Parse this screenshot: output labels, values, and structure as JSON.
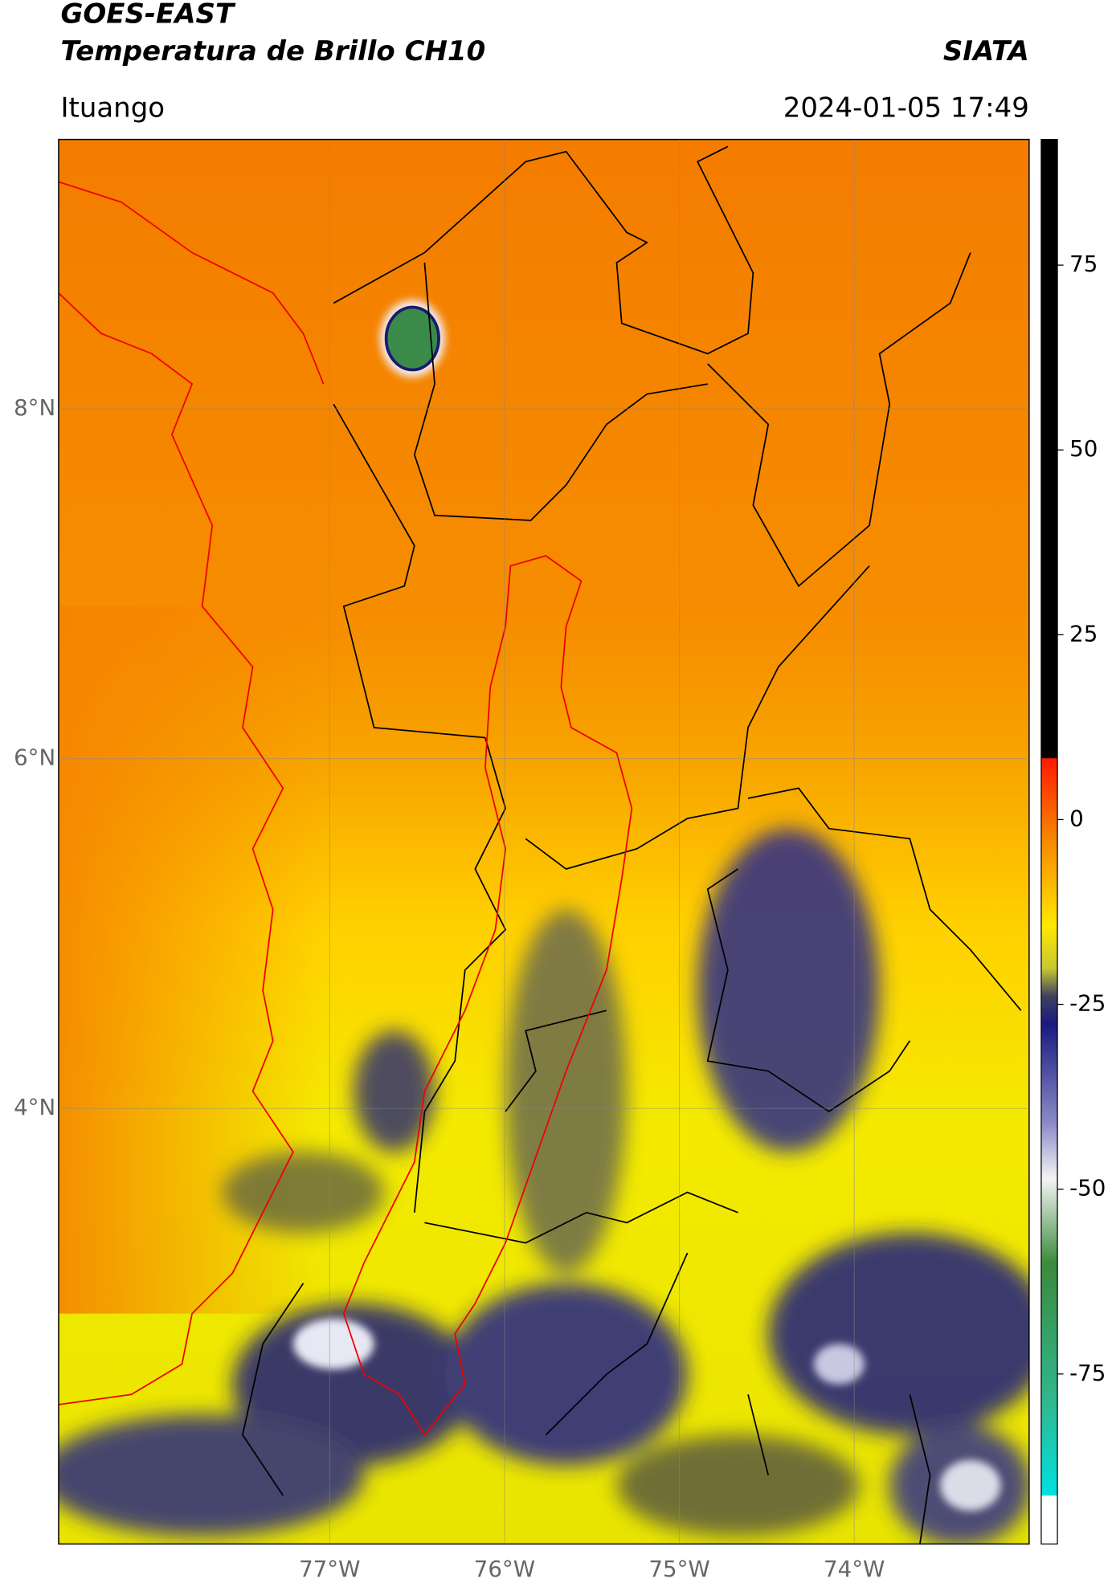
{
  "header": {
    "title": "GOES-EAST",
    "subtitle": "Temperatura de Brillo CH10",
    "agency": "SIATA",
    "location": "Ituango",
    "timestamp": "2024-01-05 17:49"
  },
  "map": {
    "xlim": [
      -78.55,
      -73.0
    ],
    "ylim": [
      1.51,
      9.54
    ],
    "xticks": [
      {
        "value": -77,
        "label": "77°W"
      },
      {
        "value": -76,
        "label": "76°W"
      },
      {
        "value": -75,
        "label": "75°W"
      },
      {
        "value": -74,
        "label": "74°W"
      }
    ],
    "yticks": [
      {
        "value": 8,
        "label": "8°N"
      },
      {
        "value": 6,
        "label": "6°N"
      },
      {
        "value": 4,
        "label": "4°N"
      }
    ],
    "grid": true
  },
  "colorbar": {
    "lim": [
      -98,
      92
    ],
    "ticks": [
      75,
      50,
      25,
      0,
      -25,
      -50,
      -75
    ]
  }
}
